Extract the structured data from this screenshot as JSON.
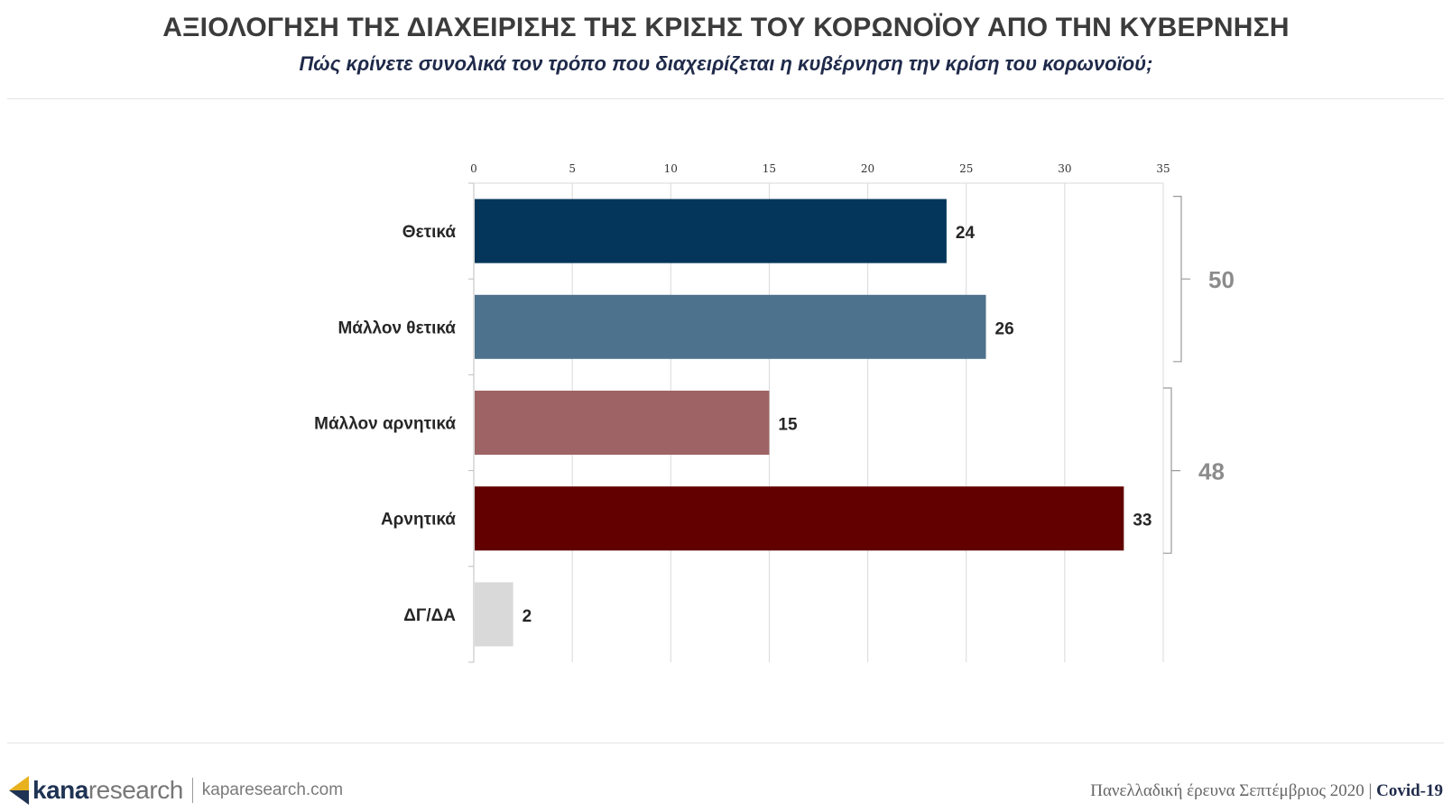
{
  "header": {
    "title": "ΑΞΙΟΛΟΓΗΣΗ ΤΗΣ ΔΙΑΧΕΙΡΙΣΗΣ ΤΗΣ ΚΡΙΣΗΣ ΤΟΥ ΚΟΡΩΝΟΪΟΥ ΑΠΟ ΤΗΝ ΚΥΒΕΡΝΗΣΗ",
    "subtitle": "Πώς κρίνετε συνολικά τον τρόπο που διαχειρίζεται η κυβέρνηση την κρίση του κορωνοϊού;"
  },
  "chart_data": {
    "type": "bar",
    "orientation": "horizontal",
    "categories": [
      "Θετικά",
      "Μάλλον θετικά",
      "Μάλλον αρνητικά",
      "Αρνητικά",
      "ΔΓ/ΔΑ"
    ],
    "values": [
      24,
      26,
      15,
      33,
      2
    ],
    "colors": [
      "#03365a",
      "#4d728d",
      "#9e6465",
      "#620000",
      "#d9d9d9"
    ],
    "xlim": [
      0,
      35
    ],
    "xticks": [
      0,
      5,
      10,
      15,
      20,
      25,
      30,
      35
    ],
    "axis_position": "top",
    "grid": true,
    "groups": [
      {
        "label": "50",
        "members": [
          "Θετικά",
          "Μάλλον θετικά"
        ]
      },
      {
        "label": "48",
        "members": [
          "Μάλλον αρνητικά",
          "Αρνητικά"
        ]
      }
    ]
  },
  "footer": {
    "logo_bold": "kana",
    "logo_light": "research",
    "website": "kaparesearch.com",
    "survey": "Πανελλαδική έρευνα Σεπτέμβριος 2020",
    "separator": "|",
    "topic": "Covid-19"
  }
}
